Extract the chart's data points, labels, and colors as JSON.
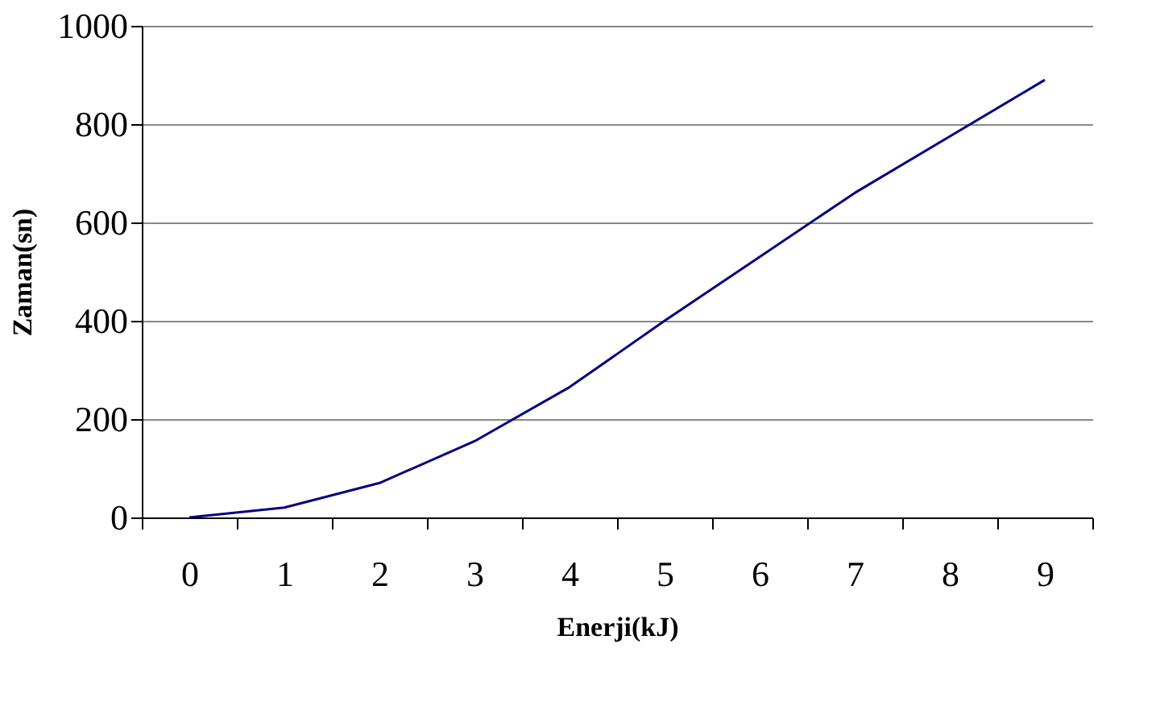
{
  "chart_data": {
    "type": "line",
    "xlabel": "Enerji(kJ)",
    "ylabel": "Zaman(sn)",
    "categories": [
      "0",
      "1",
      "2",
      "3",
      "4",
      "5",
      "6",
      "7",
      "8",
      "9"
    ],
    "values": [
      0,
      20,
      70,
      155,
      265,
      400,
      530,
      660,
      775,
      890
    ],
    "color": "#000080",
    "ylim": [
      0,
      1000
    ],
    "yticks": [
      0,
      200,
      400,
      600,
      800,
      1000
    ],
    "grid": "y"
  }
}
